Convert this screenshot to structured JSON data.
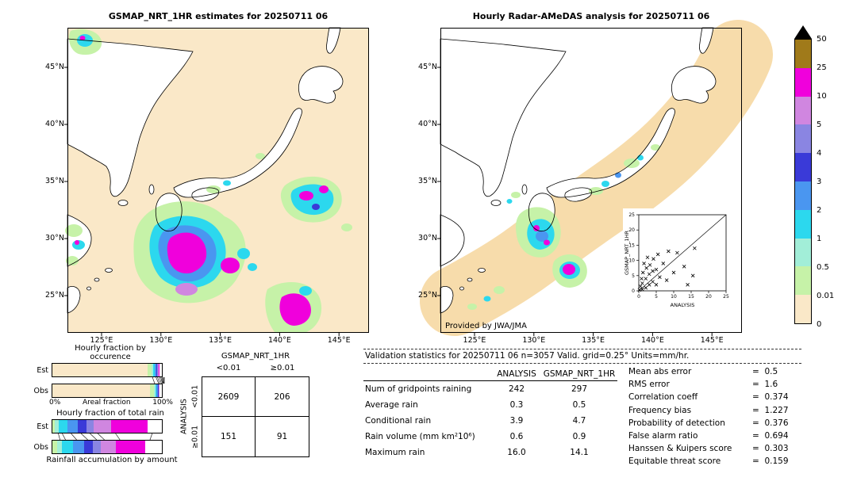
{
  "palette": {
    "peach": "#fae8c8",
    "palegreen": "#c6f2a8",
    "paleaqua": "#a2eed8",
    "cyan": "#2cd8ee",
    "medblue": "#4a96f0",
    "darkblue": "#3a3ad8",
    "slate": "#8a85e2",
    "violet": "#d086e0",
    "magenta": "#f000dc",
    "mustard": "#a07a1a",
    "white": "#ffffff",
    "coverage_band": "#f7dcab"
  },
  "left_map": {
    "title": "GSMAP_NRT_1HR estimates for 20250711 06",
    "x_ticks": [
      "125°E",
      "130°E",
      "135°E",
      "140°E",
      "145°E"
    ],
    "y_ticks": [
      "45°N",
      "40°N",
      "35°N",
      "30°N",
      "25°N"
    ]
  },
  "right_map": {
    "title": "Hourly Radar-AMeDAS analysis for 20250711 06",
    "x_ticks": [
      "125°E",
      "130°E",
      "135°E",
      "140°E",
      "145°E"
    ],
    "y_ticks": [
      "45°N",
      "40°N",
      "35°N",
      "30°N",
      "25°N"
    ],
    "credit": "Provided by JWA/JMA",
    "inset": {
      "xlabel": "ANALYSIS",
      "ylabel": "GSMAP_NRT_1HR",
      "tick_values": [
        0,
        5,
        10,
        15,
        20,
        25
      ],
      "points": [
        [
          0.2,
          0.3
        ],
        [
          0.5,
          1.5
        ],
        [
          0.8,
          4
        ],
        [
          1,
          0.5
        ],
        [
          1,
          2.5
        ],
        [
          1.2,
          6
        ],
        [
          1.5,
          9
        ],
        [
          2,
          1
        ],
        [
          2,
          4
        ],
        [
          2.2,
          7.5
        ],
        [
          2.5,
          11
        ],
        [
          3,
          2
        ],
        [
          3,
          5.5
        ],
        [
          3.2,
          8.5
        ],
        [
          4,
          3
        ],
        [
          4,
          6.5
        ],
        [
          4.2,
          10.5
        ],
        [
          5,
          2
        ],
        [
          5,
          7
        ],
        [
          5.5,
          12
        ],
        [
          6,
          4.5
        ],
        [
          7,
          9
        ],
        [
          8,
          3.5
        ],
        [
          8.5,
          13
        ],
        [
          10,
          6
        ],
        [
          11,
          12.5
        ],
        [
          13,
          8
        ],
        [
          14,
          2
        ],
        [
          15.5,
          5
        ],
        [
          16,
          14
        ]
      ]
    }
  },
  "colorbar": {
    "tick_labels": [
      "50",
      "25",
      "10",
      "5",
      "4",
      "3",
      "2",
      "1",
      "0.5",
      "0.01",
      "0"
    ],
    "band_colors_top_to_bottom": [
      "#a07a1a",
      "#f000dc",
      "#d086e0",
      "#8a85e2",
      "#3a3ad8",
      "#4a96f0",
      "#2cd8ee",
      "#a2eed8",
      "#c6f2a8",
      "#fae8c8"
    ]
  },
  "fraction_charts": {
    "occurrence": {
      "title": "Hourly fraction by occurence",
      "rows": [
        {
          "label": "Est",
          "segments": [
            {
              "color": "peach",
              "pct": 87.2
            },
            {
              "color": "palegreen",
              "pct": 3.2
            },
            {
              "color": "paleaqua",
              "pct": 1.4
            },
            {
              "color": "cyan",
              "pct": 1.7
            },
            {
              "color": "medblue",
              "pct": 1.3
            },
            {
              "color": "darkblue",
              "pct": 0.9
            },
            {
              "color": "slate",
              "pct": 0.7
            },
            {
              "color": "violet",
              "pct": 1.0
            },
            {
              "color": "magenta",
              "pct": 0.5
            },
            {
              "color": "white",
              "pct": 2.1
            }
          ]
        },
        {
          "label": "Obs",
          "segments": [
            {
              "color": "peach",
              "pct": 89.3
            },
            {
              "color": "palegreen",
              "pct": 3.5
            },
            {
              "color": "paleaqua",
              "pct": 1.1
            },
            {
              "color": "cyan",
              "pct": 1.4
            },
            {
              "color": "medblue",
              "pct": 0.9
            },
            {
              "color": "darkblue",
              "pct": 0.6
            },
            {
              "color": "slate",
              "pct": 0.4
            },
            {
              "color": "violet",
              "pct": 0.5
            },
            {
              "color": "magenta",
              "pct": 0.2
            },
            {
              "color": "white",
              "pct": 2.1
            }
          ]
        }
      ]
    },
    "areal_axis": {
      "min": "0%",
      "label": "Areal fraction",
      "max": "100%"
    },
    "total_rain": {
      "title": "Hourly fraction of total rain",
      "rows": [
        {
          "label": "Est",
          "segments": [
            {
              "color": "palegreen",
              "pct": 2.5
            },
            {
              "color": "paleaqua",
              "pct": 3.5
            },
            {
              "color": "cyan",
              "pct": 8
            },
            {
              "color": "medblue",
              "pct": 9
            },
            {
              "color": "darkblue",
              "pct": 8
            },
            {
              "color": "slate",
              "pct": 7
            },
            {
              "color": "violet",
              "pct": 16
            },
            {
              "color": "magenta",
              "pct": 33
            },
            {
              "color": "white",
              "pct": 13
            }
          ]
        },
        {
          "label": "Obs",
          "segments": [
            {
              "color": "palegreen",
              "pct": 4
            },
            {
              "color": "paleaqua",
              "pct": 5
            },
            {
              "color": "cyan",
              "pct": 10
            },
            {
              "color": "medblue",
              "pct": 10
            },
            {
              "color": "darkblue",
              "pct": 8
            },
            {
              "color": "slate",
              "pct": 7
            },
            {
              "color": "violet",
              "pct": 14
            },
            {
              "color": "magenta",
              "pct": 27
            },
            {
              "color": "white",
              "pct": 15
            }
          ]
        }
      ]
    },
    "accum_label": "Rainfall accumulation by amount"
  },
  "contingency": {
    "col_group": "GSMAP_NRT_1HR",
    "row_group": "ANALYSIS",
    "col_labels": [
      "<0.01",
      "≥0.01"
    ],
    "row_labels": [
      "<0.01",
      "≥0.01"
    ],
    "values": [
      [
        2609,
        206
      ],
      [
        151,
        91
      ]
    ]
  },
  "validation": {
    "title": "Validation statistics for 20250711 06  n=3057 Valid. grid=0.25° Units=mm/hr.",
    "col_headers": [
      "ANALYSIS",
      "GSMAP_NRT_1HR"
    ],
    "rows": [
      {
        "label": "Num of gridpoints raining",
        "analysis": "242",
        "gsmap": "297"
      },
      {
        "label": "Average rain",
        "analysis": "0.3",
        "gsmap": "0.5"
      },
      {
        "label": "Conditional rain",
        "analysis": "3.9",
        "gsmap": "4.7"
      },
      {
        "label": "Rain volume (mm km²10⁶)",
        "analysis": "0.6",
        "gsmap": "0.9"
      },
      {
        "label": "Maximum rain",
        "analysis": "16.0",
        "gsmap": "14.1"
      }
    ],
    "scores": [
      {
        "label": "Mean abs error",
        "value": "0.5"
      },
      {
        "label": "RMS error",
        "value": "1.6"
      },
      {
        "label": "Correlation coeff",
        "value": "0.374"
      },
      {
        "label": "Frequency bias",
        "value": "1.227"
      },
      {
        "label": "Probability of detection",
        "value": "0.376"
      },
      {
        "label": "False alarm ratio",
        "value": "0.694"
      },
      {
        "label": "Hanssen & Kuipers score",
        "value": "0.303"
      },
      {
        "label": "Equitable threat score",
        "value": "0.159"
      }
    ]
  },
  "chart_data": [
    {
      "type": "map",
      "title": "GSMAP_NRT_1HR estimates for 20250711 06",
      "units": "mm/hr",
      "x_ticks": [
        "125°E",
        "130°E",
        "135°E",
        "140°E",
        "145°E"
      ],
      "y_ticks": [
        "25°N",
        "30°N",
        "35°N",
        "40°N",
        "45°N"
      ],
      "description": "GSMaP NRT 1-hour satellite precipitation estimate over Japan; heavy rain (magenta/purple) southwest of Kyushu and east of Honshu over pale-peach (no rain) background"
    },
    {
      "type": "map",
      "title": "Hourly Radar-AMeDAS analysis for 20250711 06",
      "units": "mm/hr",
      "x_ticks": [
        "125°E",
        "130°E",
        "135°E",
        "140°E",
        "145°E"
      ],
      "y_ticks": [
        "25°N",
        "30°N",
        "35°N",
        "40°N",
        "45°N"
      ],
      "credit": "Provided by JWA/JMA",
      "description": "Radar-AMeDAS rain analysis inside tan radar-coverage band along the Japanese archipelago; rain cells around Kyushu and south of it"
    },
    {
      "type": "scatter",
      "xlabel": "ANALYSIS",
      "ylabel": "GSMAP_NRT_1HR",
      "xlim": [
        0,
        25
      ],
      "ylim": [
        0,
        25
      ],
      "marker": "x",
      "one_to_one_line": true,
      "points": [
        [
          0.2,
          0.3
        ],
        [
          0.5,
          1.5
        ],
        [
          0.8,
          4
        ],
        [
          1,
          0.5
        ],
        [
          1,
          2.5
        ],
        [
          1.2,
          6
        ],
        [
          1.5,
          9
        ],
        [
          2,
          1
        ],
        [
          2,
          4
        ],
        [
          2.2,
          7.5
        ],
        [
          2.5,
          11
        ],
        [
          3,
          2
        ],
        [
          3,
          5.5
        ],
        [
          3.2,
          8.5
        ],
        [
          4,
          3
        ],
        [
          4,
          6.5
        ],
        [
          4.2,
          10.5
        ],
        [
          5,
          2
        ],
        [
          5,
          7
        ],
        [
          5.5,
          12
        ],
        [
          6,
          4.5
        ],
        [
          7,
          9
        ],
        [
          8,
          3.5
        ],
        [
          8.5,
          13
        ],
        [
          10,
          6
        ],
        [
          11,
          12.5
        ],
        [
          13,
          8
        ],
        [
          14,
          2
        ],
        [
          15.5,
          5
        ],
        [
          16,
          14
        ]
      ]
    },
    {
      "type": "table",
      "name": "contingency_table",
      "col_group": "GSMAP_NRT_1HR",
      "row_group": "ANALYSIS",
      "col_labels": [
        "<0.01",
        "≥0.01"
      ],
      "row_labels": [
        "<0.01",
        "≥0.01"
      ],
      "values": [
        [
          2609,
          206
        ],
        [
          151,
          91
        ]
      ]
    },
    {
      "type": "table",
      "name": "validation_statistics",
      "n": 3057,
      "grid": "0.25°",
      "units": "mm/hr",
      "columns": [
        "ANALYSIS",
        "GSMAP_NRT_1HR"
      ],
      "rows": [
        [
          "Num of gridpoints raining",
          242,
          297
        ],
        [
          "Average rain",
          0.3,
          0.5
        ],
        [
          "Conditional rain",
          3.9,
          4.7
        ],
        [
          "Rain volume (mm km²10⁶)",
          0.6,
          0.9
        ],
        [
          "Maximum rain",
          16.0,
          14.1
        ]
      ],
      "scores": {
        "Mean abs error": 0.5,
        "RMS error": 1.6,
        "Correlation coeff": 0.374,
        "Frequency bias": 1.227,
        "Probability of detection": 0.376,
        "False alarm ratio": 0.694,
        "Hanssen & Kuipers score": 0.303,
        "Equitable threat score": 0.159
      }
    },
    {
      "type": "bar",
      "name": "hourly_fraction_by_occurrence",
      "stacked": true,
      "unit": "%",
      "categories": [
        "Est",
        "Obs"
      ],
      "series_order": [
        "peach",
        "palegreen",
        "paleaqua",
        "cyan",
        "medblue",
        "darkblue",
        "slate",
        "violet",
        "magenta",
        "white"
      ],
      "values": {
        "Est": [
          87.2,
          3.2,
          1.4,
          1.7,
          1.3,
          0.9,
          0.7,
          1.0,
          0.5,
          2.1
        ],
        "Obs": [
          89.3,
          3.5,
          1.1,
          1.4,
          0.9,
          0.6,
          0.4,
          0.5,
          0.2,
          2.1
        ]
      }
    },
    {
      "type": "bar",
      "name": "hourly_fraction_of_total_rain",
      "stacked": true,
      "unit": "%",
      "categories": [
        "Est",
        "Obs"
      ],
      "series_order": [
        "palegreen",
        "paleaqua",
        "cyan",
        "medblue",
        "darkblue",
        "slate",
        "violet",
        "magenta",
        "white"
      ],
      "values": {
        "Est": [
          2.5,
          3.5,
          8,
          9,
          8,
          7,
          16,
          33,
          13
        ],
        "Obs": [
          4,
          5,
          10,
          10,
          8,
          7,
          14,
          27,
          15
        ]
      }
    },
    {
      "type": "colorbar",
      "levels_mm_hr": [
        0,
        0.01,
        0.5,
        1,
        2,
        3,
        4,
        5,
        10,
        25,
        50
      ],
      "colors_low_to_high": [
        "#fae8c8",
        "#c6f2a8",
        "#a2eed8",
        "#2cd8ee",
        "#4a96f0",
        "#3a3ad8",
        "#8a85e2",
        "#d086e0",
        "#f000dc",
        "#a07a1a"
      ],
      "overflow_marker": "black-up-triangle"
    }
  ]
}
